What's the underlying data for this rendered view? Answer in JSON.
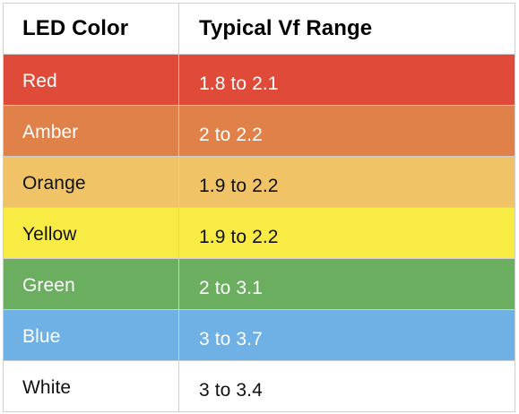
{
  "table": {
    "headers": {
      "color": "LED Color",
      "range": "Typical Vf Range"
    },
    "rows": [
      {
        "color": "Red",
        "range": "1.8 to 2.1",
        "bg": "#e04b39",
        "text": "#ffffff"
      },
      {
        "color": "Amber",
        "range": "2 to 2.2",
        "bg": "#e0814a",
        "text": "#ffffff"
      },
      {
        "color": "Orange",
        "range": "1.9 to 2.2",
        "bg": "#f0c466",
        "text": "#111111"
      },
      {
        "color": "Yellow",
        "range": "1.9 to 2.2",
        "bg": "#f8ec44",
        "text": "#111111"
      },
      {
        "color": "Green",
        "range": "2 to 3.1",
        "bg": "#6bae5f",
        "text": "#ffffff"
      },
      {
        "color": "Blue",
        "range": "3 to 3.7",
        "bg": "#6fb1e4",
        "text": "#ffffff"
      },
      {
        "color": "White",
        "range": "3 to 3.4",
        "bg": "#ffffff",
        "text": "#111111"
      }
    ]
  }
}
